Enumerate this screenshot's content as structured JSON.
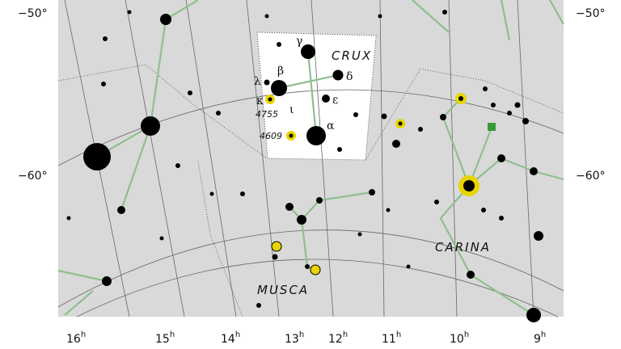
{
  "map": {
    "constellations": [
      "CRUX",
      "CARINA",
      "MUSCA"
    ],
    "greek_labels": {
      "gamma": "γ",
      "beta": "β",
      "delta": "δ",
      "lambda": "λ",
      "epsilon": "ε",
      "kappa": "κ",
      "iota": "ι",
      "alpha": "α"
    },
    "objects": [
      "4755",
      "4609"
    ],
    "ra_ticks": [
      {
        "h": "16",
        "sup": "h"
      },
      {
        "h": "15",
        "sup": "h"
      },
      {
        "h": "14",
        "sup": "h"
      },
      {
        "h": "13",
        "sup": "h"
      },
      {
        "h": "12",
        "sup": "h"
      },
      {
        "h": "11",
        "sup": "h"
      },
      {
        "h": "10",
        "sup": "h"
      },
      {
        "h": "9",
        "sup": "h"
      }
    ],
    "dec_ticks": [
      "−50°",
      "−60°"
    ],
    "colors": {
      "background": "#d9d9d9",
      "highlight": "#ffffff",
      "stick": "#8fbf8f",
      "cluster": "#e8d400",
      "nebula": "#3a9a3a"
    }
  }
}
